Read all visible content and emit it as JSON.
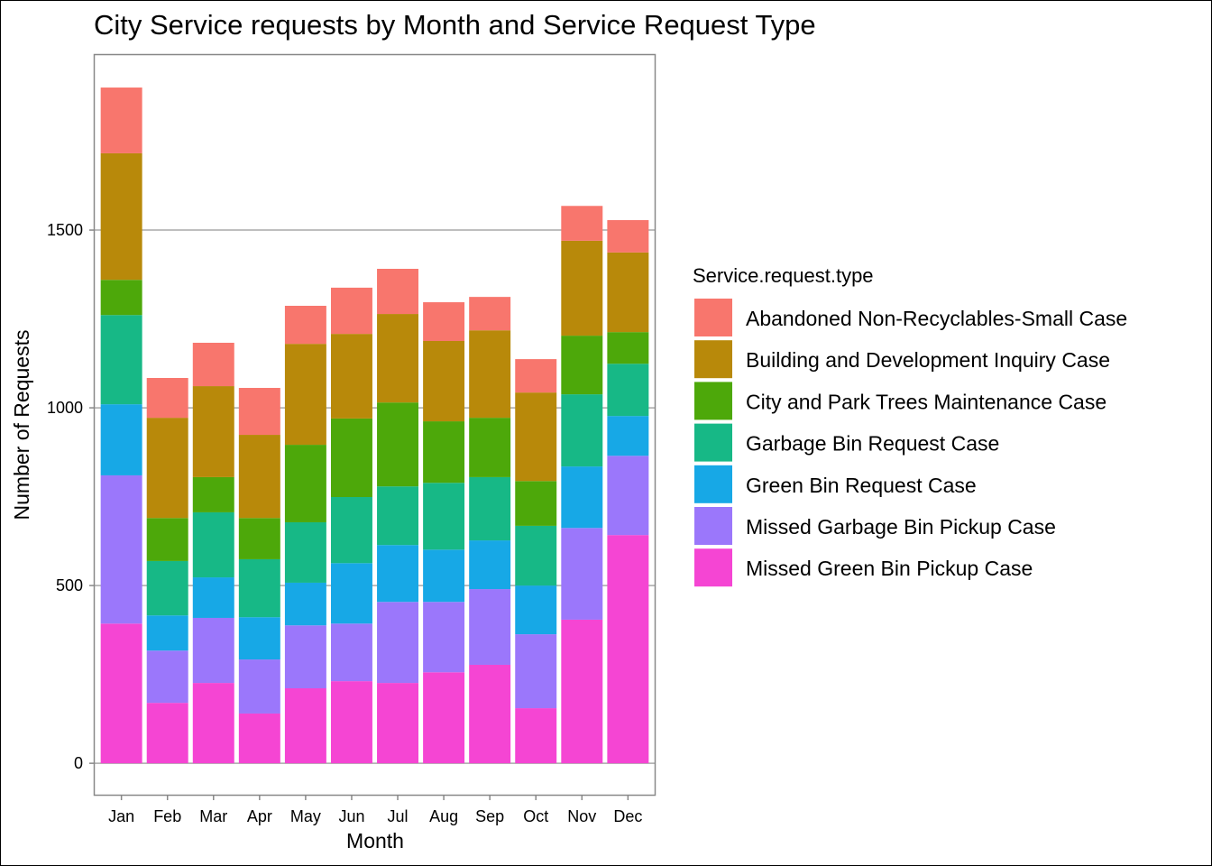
{
  "chart_data": {
    "type": "bar",
    "stacked": true,
    "title": "City Service requests by Month and Service Request Type",
    "xlabel": "Month",
    "ylabel": "Number of Requests",
    "ylim": [
      -91,
      1995
    ],
    "yticks": [
      0,
      500,
      1000,
      1500
    ],
    "grid": true,
    "legend_title": "Service.request.type",
    "legend_position": "right",
    "categories": [
      "Jan",
      "Feb",
      "Mar",
      "Apr",
      "May",
      "Jun",
      "Jul",
      "Aug",
      "Sep",
      "Oct",
      "Nov",
      "Dec"
    ],
    "series": [
      {
        "name": "Abandoned Non-Recyclables-Small Case",
        "color": "#F8766D",
        "values": [
          185,
          112,
          122,
          132,
          107,
          130,
          127,
          109,
          94,
          94,
          98,
          91
        ]
      },
      {
        "name": "Building and Development Inquiry Case",
        "color": "#B8890A",
        "values": [
          356,
          282,
          256,
          234,
          284,
          238,
          249,
          226,
          246,
          249,
          267,
          224
        ]
      },
      {
        "name": "City and Park Trees Maintenance Case",
        "color": "#4DA80A",
        "values": [
          99,
          121,
          99,
          116,
          218,
          221,
          236,
          173,
          167,
          126,
          165,
          89
        ]
      },
      {
        "name": "Garbage Bin Request Case",
        "color": "#17B886",
        "values": [
          251,
          153,
          183,
          163,
          170,
          186,
          165,
          188,
          178,
          168,
          203,
          147
        ]
      },
      {
        "name": "Green Bin Request Case",
        "color": "#17A8E6",
        "values": [
          200,
          99,
          114,
          119,
          120,
          170,
          160,
          147,
          137,
          137,
          173,
          112
        ]
      },
      {
        "name": "Missed Garbage Bin Pickup Case",
        "color": "#9B77FB",
        "values": [
          417,
          147,
          183,
          152,
          177,
          162,
          228,
          198,
          213,
          208,
          258,
          223
        ]
      },
      {
        "name": "Missed Green Bin Pickup Case",
        "color": "#F545D3",
        "values": [
          393,
          170,
          226,
          140,
          211,
          231,
          226,
          256,
          277,
          155,
          404,
          642
        ]
      }
    ]
  }
}
